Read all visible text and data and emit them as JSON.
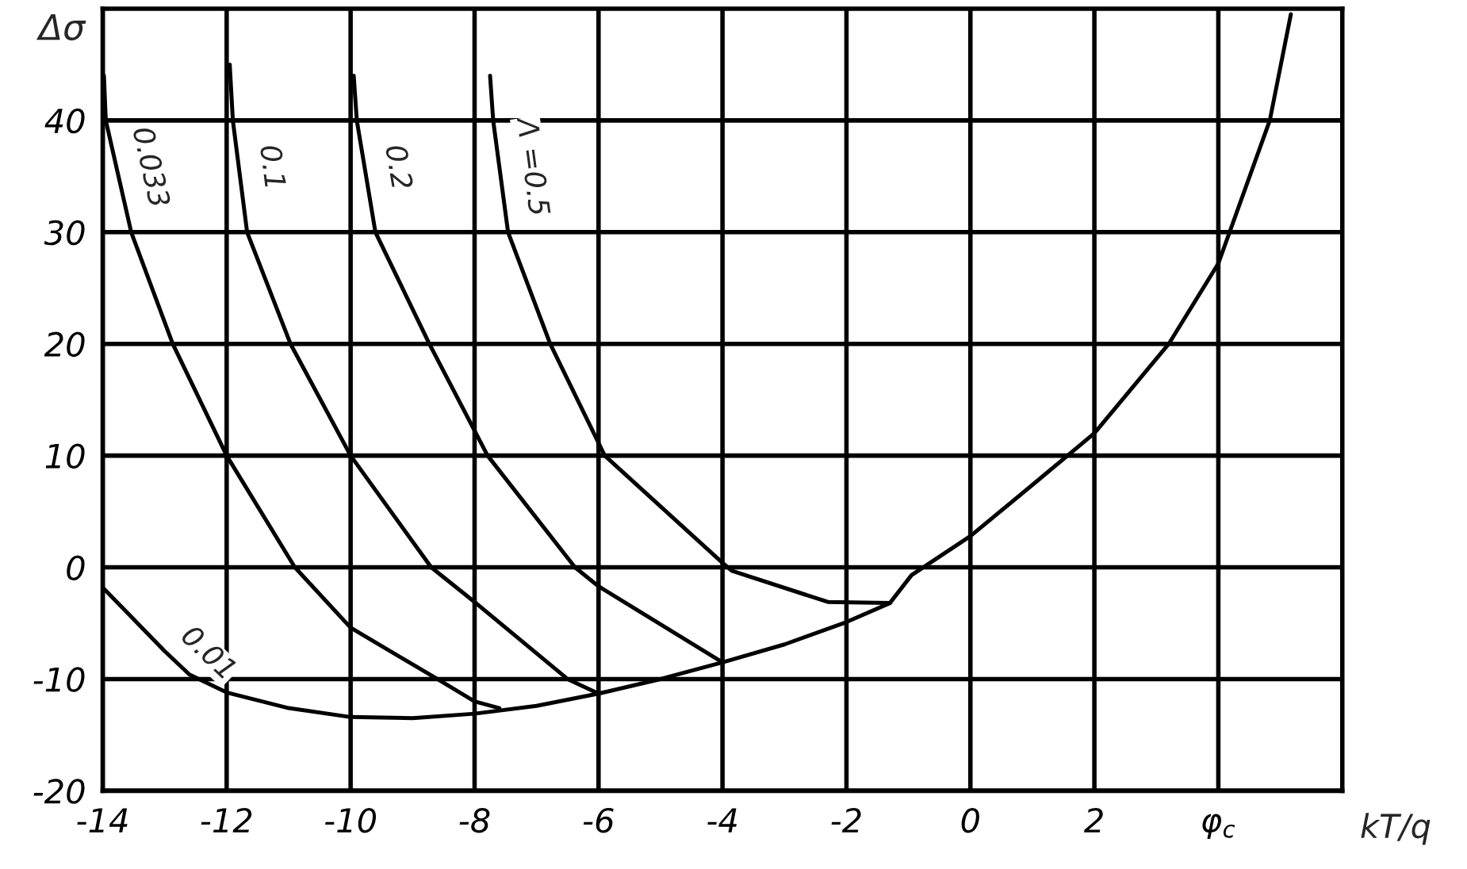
{
  "chart_data": {
    "type": "line",
    "xlabel": "kT/q",
    "ylabel": "Δσ",
    "xlim": [
      -14,
      6
    ],
    "ylim": [
      -20,
      50
    ],
    "xticks": [
      -14,
      -12,
      -10,
      -8,
      -6,
      -4,
      -2,
      0,
      2,
      {
        "value": 4,
        "label": "φ$_{c}$"
      }
    ],
    "yticks": [
      -20,
      -10,
      0,
      10,
      20,
      30,
      40
    ],
    "grid": true,
    "marker": "none",
    "line_style": "solid",
    "series": [
      {
        "name": "0.01",
        "color": "#000000",
        "x": [
          -14,
          -13,
          -12.6,
          -12,
          -11,
          -10,
          -9,
          -8,
          -7,
          -6,
          -5,
          -4,
          -3,
          -2,
          -1.3,
          -0.95,
          0,
          1.07,
          2,
          3.2,
          4,
          4.83,
          5.17
        ],
        "values": [
          -1.8,
          -7.5,
          -9.6,
          -11.2,
          -12.6,
          -13.4,
          -13.5,
          -13.1,
          -12.4,
          -11.3,
          -10,
          -8.5,
          -6.9,
          -4.9,
          -3.2,
          -0.7,
          2.8,
          7.7,
          12,
          20,
          27.2,
          40,
          49.5
        ]
      },
      {
        "name": "0.033",
        "color": "#000000",
        "x": [
          -13.98,
          -13.95,
          -13.54,
          -12.87,
          -12,
          -10.9,
          -10,
          -8.6,
          -8,
          -7.6
        ],
        "values": [
          44,
          40,
          30,
          20,
          10,
          0,
          -5.4,
          -10,
          -12,
          -12.6
        ]
      },
      {
        "name": "0.1",
        "color": "#000000",
        "x": [
          -11.95,
          -11.9,
          -11.67,
          -10.97,
          -10,
          -8.7,
          -8,
          -6.5,
          -6
        ],
        "values": [
          45,
          40,
          30,
          20,
          10,
          0,
          -3.1,
          -10,
          -11.3
        ]
      },
      {
        "name": "0.2",
        "color": "#000000",
        "x": [
          -9.95,
          -9.9,
          -9.6,
          -8.73,
          -7.79,
          -6.38,
          -6,
          -4
        ],
        "values": [
          44,
          40,
          30,
          20,
          10,
          0,
          -1.7,
          -8.5
        ]
      },
      {
        "name": "Λ =0.5",
        "color": "#000000",
        "x": [
          -7.75,
          -7.7,
          -7.46,
          -6.78,
          -5.9,
          -4,
          -3.85,
          -2.3,
          -1.3
        ],
        "values": [
          44,
          40,
          30,
          20,
          10,
          0.4,
          -0.3,
          -3.1,
          -3.2
        ]
      }
    ]
  }
}
